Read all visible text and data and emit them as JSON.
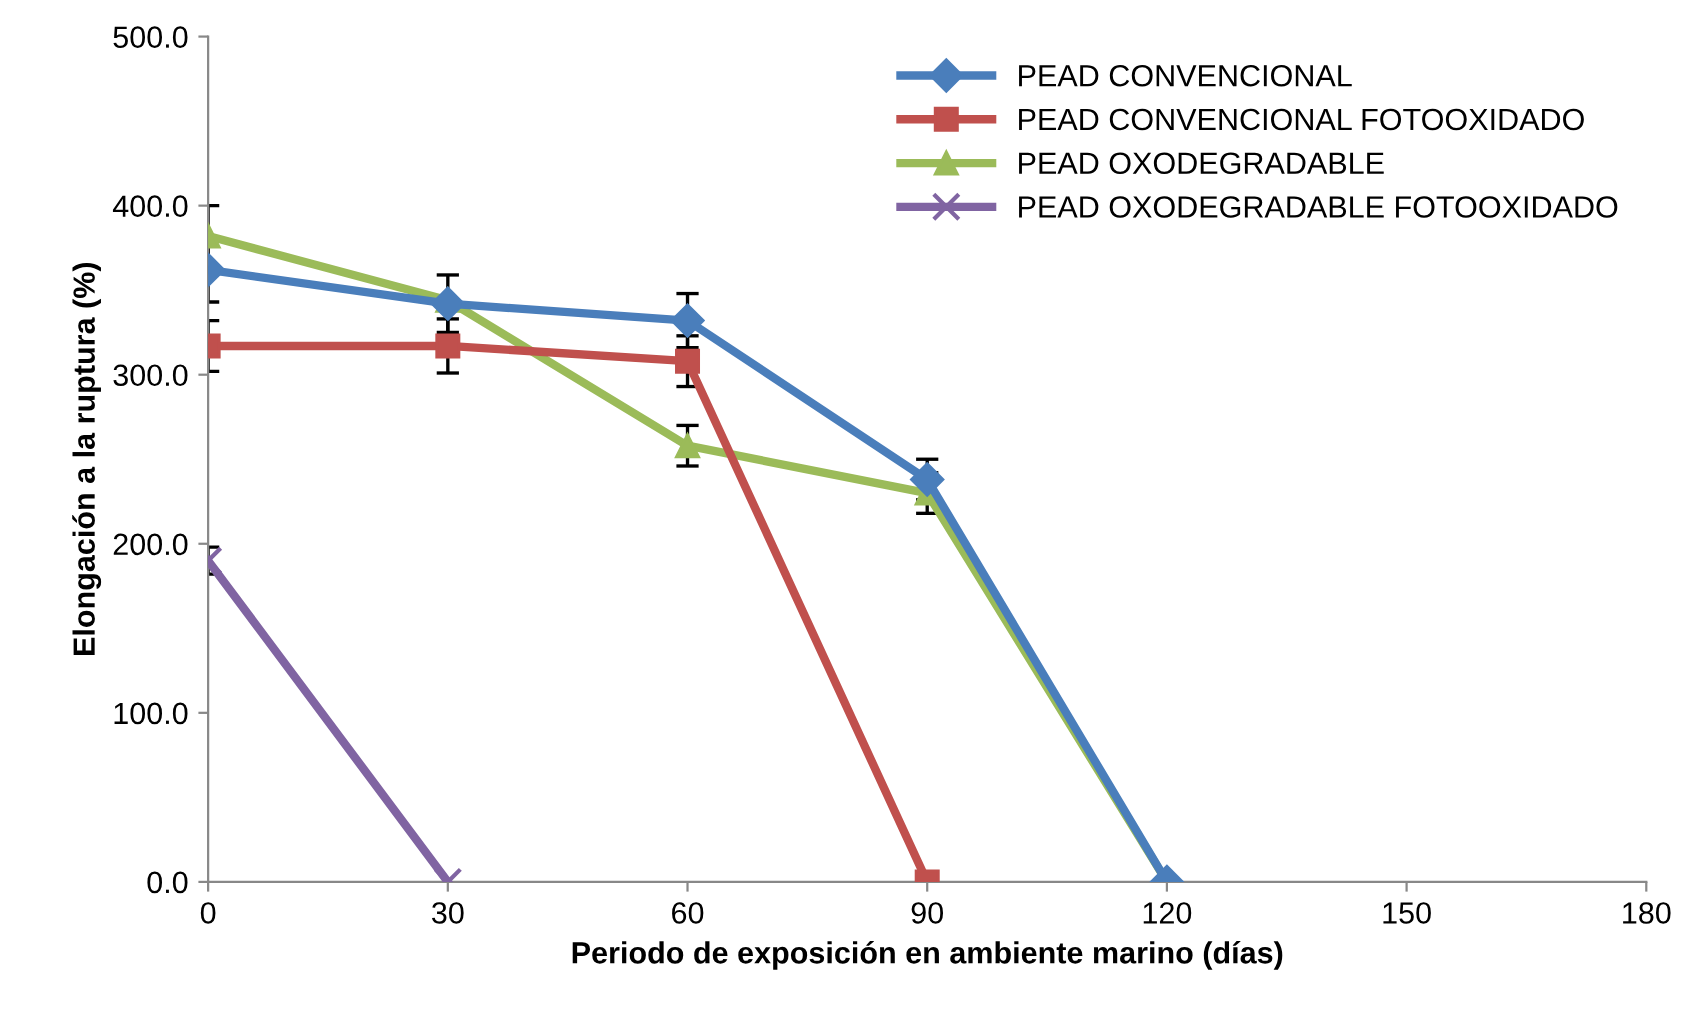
{
  "chart_data": {
    "type": "line",
    "xlabel": "Periodo de exposición en ambiente marino (días)",
    "ylabel": "Elongación a la ruptura (%)",
    "x": [
      0,
      30,
      60,
      90,
      120
    ],
    "series": [
      {
        "name": "PEAD CONVENCIONAL",
        "color": "#4a7ebb",
        "marker": "diamond",
        "values": [
          362,
          342,
          332,
          238,
          0
        ],
        "errors": [
          19,
          17,
          16,
          12,
          null
        ]
      },
      {
        "name": "PEAD CONVENCIONAL FOTOOXIDADO",
        "color": "#c0504d",
        "marker": "square",
        "values": [
          317,
          317,
          308,
          0,
          null
        ],
        "errors": [
          15,
          16,
          15,
          null,
          null
        ]
      },
      {
        "name": "PEAD OXODEGRADABLE",
        "color": "#9bbb59",
        "marker": "triangle",
        "values": [
          382,
          344,
          258,
          230,
          0
        ],
        "errors": [
          18,
          null,
          12,
          12,
          null
        ]
      },
      {
        "name": "PEAD OXODEGRADABLE FOTOOXIDADO",
        "color": "#8064a2",
        "marker": "cross",
        "values": [
          190,
          0,
          null,
          null,
          null
        ],
        "errors": [
          8,
          null,
          null,
          null,
          null
        ]
      }
    ],
    "xlim": [
      0,
      180
    ],
    "xticks": [
      0,
      30,
      60,
      90,
      120,
      150,
      180
    ],
    "ylim": [
      0,
      500
    ],
    "yticks": [
      {
        "value": 0,
        "label": "0.0"
      },
      {
        "value": 100,
        "label": "100.0"
      },
      {
        "value": 200,
        "label": "200.0"
      },
      {
        "value": 300,
        "label": "300.0"
      },
      {
        "value": 400,
        "label": "400.0"
      },
      {
        "value": 500,
        "label": "500.0"
      }
    ],
    "grid": false,
    "legend": "top right",
    "line_style": "solid"
  }
}
